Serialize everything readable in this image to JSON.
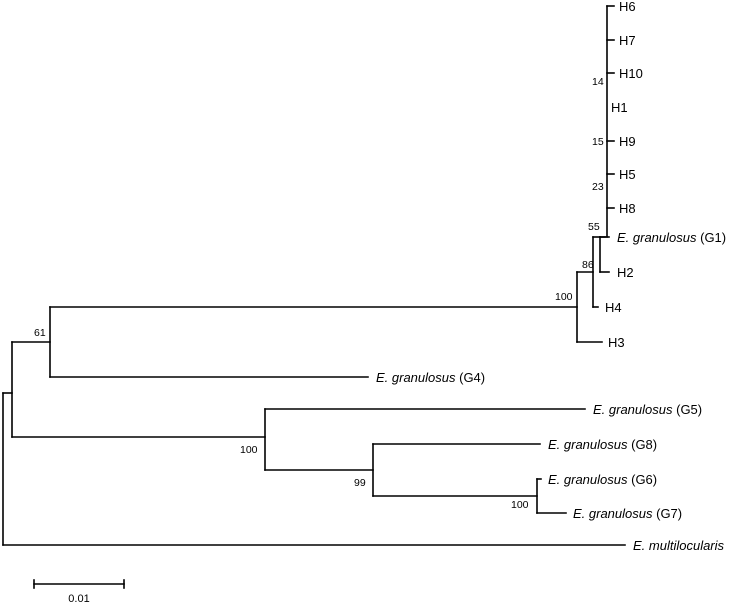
{
  "leaves": {
    "H6": "H6",
    "H7": "H7",
    "H10": "H10",
    "H1": "H1",
    "H9": "H9",
    "H5": "H5",
    "H8": "H8",
    "G1": {
      "genus": "E. granulosus",
      "suffix": " (G1)"
    },
    "H2": "H2",
    "H4": "H4",
    "H3": "H3",
    "G4": {
      "genus": "E. granulosus",
      "suffix": " (G4)"
    },
    "G5": {
      "genus": "E. granulosus",
      "suffix": " (G5)"
    },
    "G8": {
      "genus": "E. granulosus",
      "suffix": " (G8)"
    },
    "G6": {
      "genus": "E. granulosus",
      "suffix": " (G6)"
    },
    "G7": {
      "genus": "E. granulosus",
      "suffix": " (G7)"
    },
    "multi": {
      "genus": "E. multilocularis",
      "suffix": ""
    }
  },
  "bootstrap": {
    "n14": "14",
    "n15": "15",
    "n23": "23",
    "n55": "55",
    "n86": "86",
    "n100_haplo": "100",
    "n61": "61",
    "n100_g5": "100",
    "n99": "99",
    "n100_g67": "100"
  },
  "scale_bar": {
    "label": "0.01",
    "value": 0.01
  }
}
